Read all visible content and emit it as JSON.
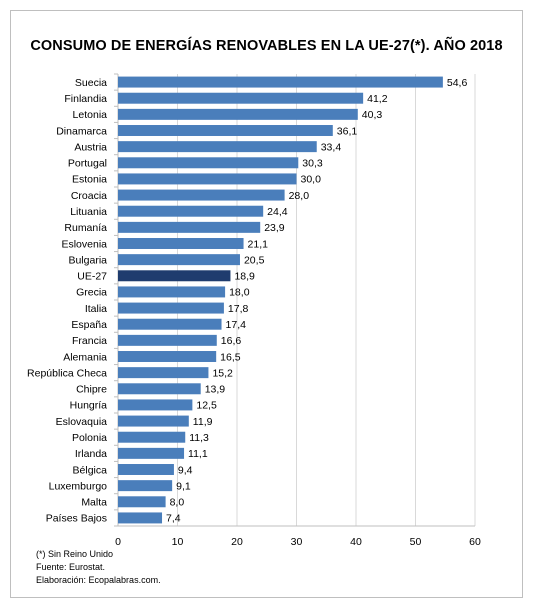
{
  "chart_data": {
    "type": "bar",
    "orientation": "horizontal",
    "title": "CONSUMO DE ENERGÍAS RENOVABLES EN LA UE-27(*). AÑO 2018",
    "categories": [
      "Suecia",
      "Finlandia",
      "Letonia",
      "Dinamarca",
      "Austria",
      "Portugal",
      "Estonia",
      "Croacia",
      "Lituania",
      "Rumanía",
      "Eslovenia",
      "Bulgaria",
      "UE-27",
      "Grecia",
      "Italia",
      "España",
      "Francia",
      "Alemania",
      "República Checa",
      "Chipre",
      "Hungría",
      "Eslovaquia",
      "Polonia",
      "Irlanda",
      "Bélgica",
      "Luxemburgo",
      "Malta",
      "Países Bajos"
    ],
    "values": [
      54.6,
      41.2,
      40.3,
      36.1,
      33.4,
      30.3,
      30.0,
      28.0,
      24.4,
      23.9,
      21.1,
      20.5,
      18.9,
      18.0,
      17.8,
      17.4,
      16.6,
      16.5,
      15.2,
      13.9,
      12.5,
      11.9,
      11.3,
      11.1,
      9.4,
      9.1,
      8.0,
      7.4
    ],
    "value_labels": [
      "54,6",
      "41,2",
      "40,3",
      "36,1",
      "33,4",
      "30,3",
      "30,0",
      "28,0",
      "24,4",
      "23,9",
      "21,1",
      "20,5",
      "18,9",
      "18,0",
      "17,8",
      "17,4",
      "16,6",
      "16,5",
      "15,2",
      "13,9",
      "12,5",
      "11,9",
      "11,3",
      "11,1",
      "9,4",
      "9,1",
      "8,0",
      "7,4"
    ],
    "xlim": [
      0,
      60
    ],
    "xticks": [
      0,
      10,
      20,
      30,
      40,
      50,
      60
    ],
    "grid": true,
    "highlight_category": "UE-27",
    "colors": {
      "bar": "#4a7ebb",
      "highlight": "#1f3c6e",
      "grid": "#d9d9d9"
    }
  },
  "notes": {
    "footnote": "(*) Sin Reino Unido",
    "source": "Fuente: Eurostat.",
    "credit": "Elaboración: Ecopalabras.com."
  }
}
